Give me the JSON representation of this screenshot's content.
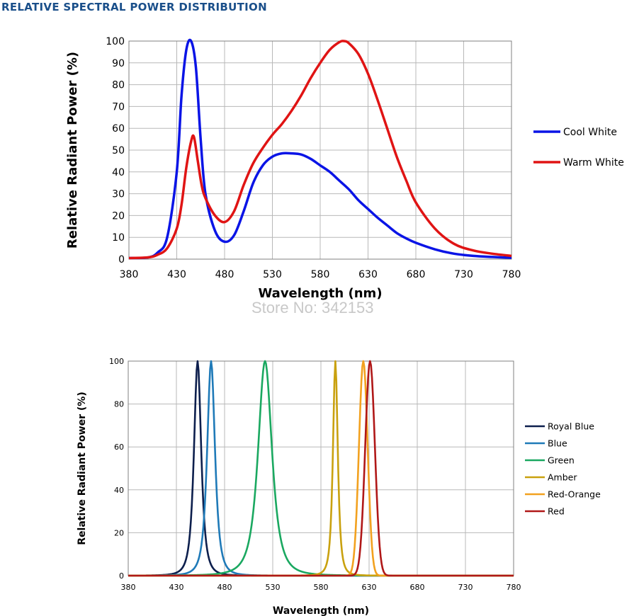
{
  "header": {
    "title": "RELATIVE SPECTRAL POWER DISTRIBUTION"
  },
  "watermark": "Store No: 342153",
  "chart_data": [
    {
      "type": "line",
      "title": "",
      "xlabel": "Wavelength (nm)",
      "ylabel": "Relative Radiant Power (%)",
      "xlim": [
        380,
        780
      ],
      "ylim": [
        0,
        100
      ],
      "xticks": [
        380,
        430,
        480,
        530,
        580,
        630,
        680,
        730,
        780
      ],
      "yticks": [
        0,
        10,
        20,
        30,
        40,
        50,
        60,
        70,
        80,
        90,
        100
      ],
      "grid": true,
      "legend": "right",
      "series": [
        {
          "name": "Cool White",
          "color": "#0a14e6",
          "x": [
            380,
            400,
            410,
            420,
            430,
            435,
            440,
            445,
            450,
            455,
            460,
            470,
            480,
            490,
            500,
            510,
            520,
            530,
            540,
            550,
            560,
            570,
            580,
            590,
            600,
            610,
            620,
            630,
            640,
            650,
            660,
            670,
            680,
            700,
            720,
            740,
            760,
            780
          ],
          "y": [
            0.5,
            0.8,
            3,
            10,
            40,
            75,
            96,
            100,
            88,
            55,
            30,
            13,
            8,
            11,
            22,
            35,
            43,
            47,
            48.5,
            48.5,
            48,
            46,
            43,
            40,
            36,
            32,
            27,
            23,
            19,
            15.5,
            12,
            9.5,
            7.5,
            4.5,
            2.5,
            1.5,
            1,
            0.6
          ]
        },
        {
          "name": "Warm White",
          "color": "#e01414",
          "x": [
            380,
            400,
            410,
            420,
            430,
            435,
            440,
            445,
            448,
            452,
            456,
            460,
            470,
            480,
            490,
            500,
            510,
            520,
            530,
            540,
            550,
            560,
            570,
            580,
            590,
            600,
            605,
            610,
            620,
            630,
            640,
            650,
            660,
            670,
            680,
            700,
            720,
            740,
            760,
            780
          ],
          "y": [
            0.5,
            0.8,
            2,
            5,
            14,
            25,
            42,
            54,
            56,
            45,
            34,
            28,
            20,
            17,
            22,
            34,
            44,
            51,
            57,
            62,
            68,
            75,
            83,
            90,
            96,
            99.5,
            100,
            99,
            94,
            85,
            73,
            60,
            47,
            36,
            26,
            14,
            7,
            4,
            2.5,
            1.5
          ]
        }
      ]
    },
    {
      "type": "line",
      "title": "",
      "xlabel": "Wavelength (nm)",
      "ylabel": "Relative Radiant Power (%)",
      "xlim": [
        380,
        780
      ],
      "ylim": [
        0,
        100
      ],
      "xticks": [
        380,
        430,
        480,
        530,
        580,
        630,
        680,
        730,
        780
      ],
      "yticks": [
        0,
        20,
        40,
        60,
        80,
        100
      ],
      "grid": true,
      "legend": "right",
      "series": [
        {
          "name": "Royal Blue",
          "color": "#0d1f4d",
          "peak": 452,
          "width": 12,
          "shape": "lorentz"
        },
        {
          "name": "Blue",
          "color": "#1f7ab8",
          "peak": 466,
          "width": 13,
          "shape": "lorentz"
        },
        {
          "name": "Green",
          "color": "#1aa860",
          "peak": 522,
          "width": 23,
          "shape": "lorentz"
        },
        {
          "name": "Amber",
          "color": "#c9a10f",
          "peak": 595,
          "width": 8,
          "shape": "lorentz"
        },
        {
          "name": "Red-Orange",
          "color": "#f2a11f",
          "peak": 624,
          "width": 9,
          "shape": "gauss"
        },
        {
          "name": "Red",
          "color": "#b01818",
          "peak": 631,
          "width": 10,
          "shape": "gauss"
        }
      ]
    }
  ]
}
